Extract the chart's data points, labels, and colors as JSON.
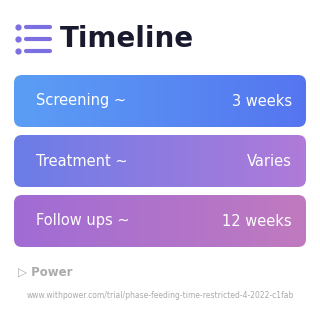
{
  "title": "Timeline",
  "title_fontsize": 20,
  "title_color": "#1a1a2e",
  "icon_color": "#7c6fe0",
  "bg_color": "#ffffff",
  "rows": [
    {
      "label": "Screening ~",
      "value": "3 weeks",
      "grad_left": "#5b9ef5",
      "grad_right": "#5575f0"
    },
    {
      "label": "Treatment ~",
      "value": "Varies",
      "grad_left": "#6b7de8",
      "grad_right": "#b07ad8"
    },
    {
      "label": "Follow ups ~",
      "value": "12 weeks",
      "grad_left": "#a06cd5",
      "grad_right": "#c07abf"
    }
  ],
  "row_text_color": "#ffffff",
  "row_fontsize": 10.5,
  "footer_text": "Power",
  "footer_url": "www.withpower.com/trial/phase-feeding-time-restricted-4-2022-c1fab",
  "footer_color": "#aaaaaa",
  "footer_fontsize": 5.5
}
